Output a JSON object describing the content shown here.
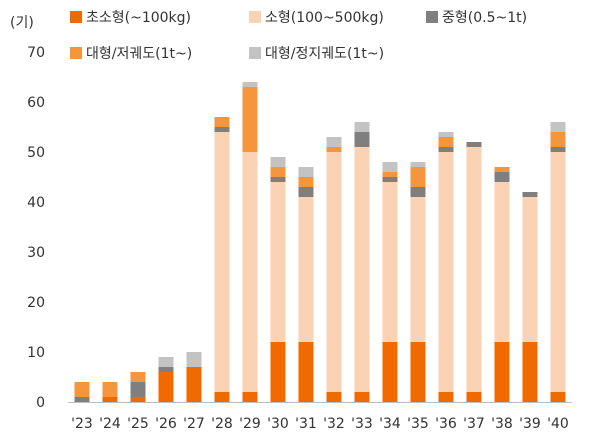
{
  "chart_data": {
    "type": "bar",
    "stacked": true,
    "unit_label": "(기)",
    "categories": [
      "'23",
      "'24",
      "'25",
      "'26",
      "'27",
      "'28",
      "'29",
      "'30",
      "'31",
      "'32",
      "'33",
      "'34",
      "'35",
      "'36",
      "'37",
      "'38",
      "'39",
      "'40"
    ],
    "ylim": [
      0,
      70
    ],
    "yticks": [
      0,
      10,
      20,
      30,
      40,
      50,
      60,
      70
    ],
    "grid": false,
    "legend_position": "top",
    "series": [
      {
        "name": "초소형(~100kg)",
        "color": "#F06A00",
        "values": [
          0,
          1,
          1,
          6,
          7,
          2,
          2,
          12,
          12,
          2,
          2,
          12,
          12,
          2,
          2,
          12,
          12,
          2
        ]
      },
      {
        "name": "소형(100~500kg)",
        "color": "#FAD2B4",
        "values": [
          0,
          0,
          0,
          0,
          0,
          52,
          48,
          32,
          29,
          48,
          49,
          32,
          29,
          48,
          49,
          32,
          29,
          48
        ]
      },
      {
        "name": "중형(0.5~1t)",
        "color": "#7F7F7F",
        "values": [
          1,
          0,
          3,
          1,
          0,
          1,
          0,
          1,
          2,
          0,
          3,
          1,
          2,
          1,
          1,
          2,
          1,
          1
        ]
      },
      {
        "name": "대형/저궤도(1t~)",
        "color": "#F5963C",
        "values": [
          3,
          3,
          2,
          0,
          0,
          2,
          13,
          2,
          2,
          1,
          0,
          1,
          4,
          2,
          0,
          1,
          0,
          3
        ]
      },
      {
        "name": "대형/정지궤도(1t~)",
        "color": "#C3C3C3",
        "values": [
          0,
          0,
          0,
          2,
          3,
          0,
          1,
          2,
          2,
          2,
          2,
          2,
          1,
          1,
          0,
          0,
          0,
          2
        ]
      }
    ]
  }
}
